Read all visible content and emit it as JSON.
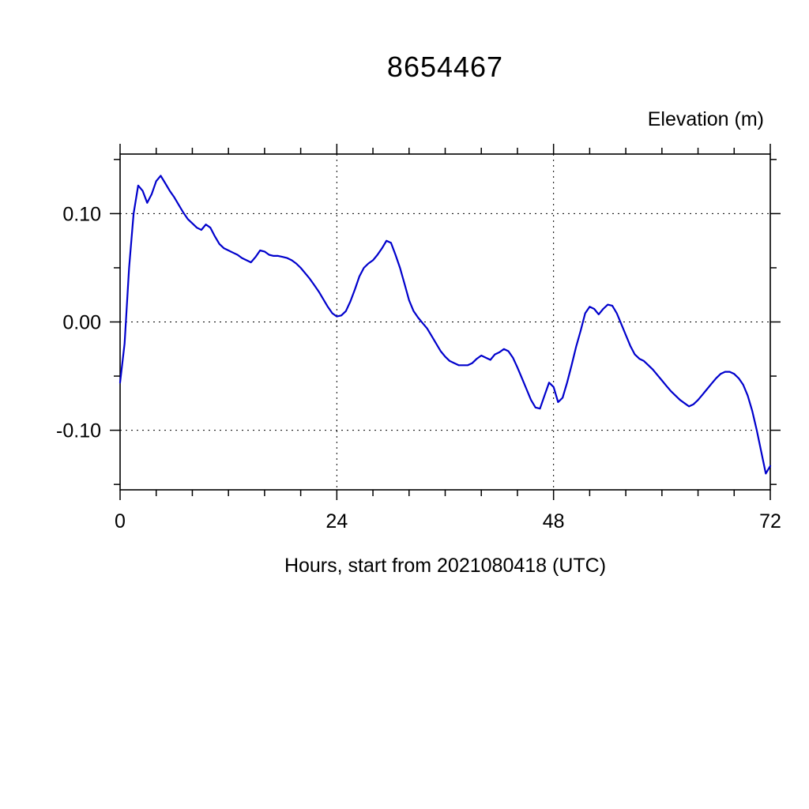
{
  "chart_data": {
    "type": "line",
    "title": "8654467",
    "ylabel": "Elevation (m)",
    "xlabel": "Hours, start from 2021080418 (UTC)",
    "xlim": [
      0,
      72
    ],
    "ylim": [
      -0.155,
      0.155
    ],
    "xticks": [
      {
        "v": 0,
        "label": "0"
      },
      {
        "v": 24,
        "label": "24"
      },
      {
        "v": 48,
        "label": "48"
      },
      {
        "v": 72,
        "label": "72"
      }
    ],
    "xtick_minor_step": 4,
    "yticks": [
      {
        "v": 0.1,
        "label": "0.10"
      },
      {
        "v": 0.0,
        "label": "0.00"
      },
      {
        "v": -0.1,
        "label": "-0.10"
      }
    ],
    "ytick_minor_step": 0.05,
    "grid": {
      "style": "dashed",
      "on_major_ticks": true
    },
    "line_color": "#0000cc",
    "frame_color": "#000000",
    "series": [
      {
        "name": "elevation_m",
        "points": [
          [
            0,
            -0.056
          ],
          [
            0.5,
            -0.02
          ],
          [
            1,
            0.05
          ],
          [
            1.5,
            0.1
          ],
          [
            2,
            0.126
          ],
          [
            2.5,
            0.121
          ],
          [
            3,
            0.11
          ],
          [
            3.5,
            0.118
          ],
          [
            4,
            0.13
          ],
          [
            4.5,
            0.135
          ],
          [
            5,
            0.128
          ],
          [
            5.5,
            0.121
          ],
          [
            6,
            0.115
          ],
          [
            6.5,
            0.108
          ],
          [
            7,
            0.101
          ],
          [
            7.5,
            0.095
          ],
          [
            8,
            0.091
          ],
          [
            8.5,
            0.087
          ],
          [
            9,
            0.085
          ],
          [
            9.5,
            0.09
          ],
          [
            10,
            0.087
          ],
          [
            10.5,
            0.079
          ],
          [
            11,
            0.072
          ],
          [
            11.5,
            0.068
          ],
          [
            12,
            0.066
          ],
          [
            12.5,
            0.064
          ],
          [
            13,
            0.062
          ],
          [
            13.5,
            0.059
          ],
          [
            14,
            0.057
          ],
          [
            14.5,
            0.055
          ],
          [
            15,
            0.06
          ],
          [
            15.5,
            0.066
          ],
          [
            16,
            0.065
          ],
          [
            16.5,
            0.062
          ],
          [
            17,
            0.061
          ],
          [
            17.5,
            0.061
          ],
          [
            18,
            0.06
          ],
          [
            18.5,
            0.059
          ],
          [
            19,
            0.057
          ],
          [
            19.5,
            0.054
          ],
          [
            20,
            0.05
          ],
          [
            20.5,
            0.045
          ],
          [
            21,
            0.04
          ],
          [
            21.5,
            0.034
          ],
          [
            22,
            0.028
          ],
          [
            22.5,
            0.021
          ],
          [
            23,
            0.014
          ],
          [
            23.5,
            0.008
          ],
          [
            24,
            0.005
          ],
          [
            24.5,
            0.006
          ],
          [
            25,
            0.01
          ],
          [
            25.5,
            0.019
          ],
          [
            26,
            0.03
          ],
          [
            26.5,
            0.042
          ],
          [
            27,
            0.05
          ],
          [
            27.5,
            0.054
          ],
          [
            28,
            0.057
          ],
          [
            28.5,
            0.062
          ],
          [
            29,
            0.068
          ],
          [
            29.5,
            0.075
          ],
          [
            30,
            0.073
          ],
          [
            30.5,
            0.062
          ],
          [
            31,
            0.05
          ],
          [
            31.5,
            0.035
          ],
          [
            32,
            0.02
          ],
          [
            32.5,
            0.01
          ],
          [
            33,
            0.004
          ],
          [
            33.5,
            -0.001
          ],
          [
            34,
            -0.006
          ],
          [
            34.5,
            -0.013
          ],
          [
            35,
            -0.02
          ],
          [
            35.5,
            -0.027
          ],
          [
            36,
            -0.032
          ],
          [
            36.5,
            -0.036
          ],
          [
            37,
            -0.038
          ],
          [
            37.5,
            -0.04
          ],
          [
            38,
            -0.04
          ],
          [
            38.5,
            -0.04
          ],
          [
            39,
            -0.038
          ],
          [
            39.5,
            -0.034
          ],
          [
            40,
            -0.031
          ],
          [
            40.5,
            -0.033
          ],
          [
            41,
            -0.035
          ],
          [
            41.5,
            -0.03
          ],
          [
            42,
            -0.028
          ],
          [
            42.5,
            -0.025
          ],
          [
            43,
            -0.027
          ],
          [
            43.5,
            -0.033
          ],
          [
            44,
            -0.042
          ],
          [
            44.5,
            -0.052
          ],
          [
            45,
            -0.062
          ],
          [
            45.5,
            -0.072
          ],
          [
            46,
            -0.079
          ],
          [
            46.5,
            -0.08
          ],
          [
            47,
            -0.068
          ],
          [
            47.5,
            -0.056
          ],
          [
            48,
            -0.06
          ],
          [
            48.5,
            -0.074
          ],
          [
            49,
            -0.07
          ],
          [
            49.5,
            -0.056
          ],
          [
            50,
            -0.04
          ],
          [
            50.5,
            -0.023
          ],
          [
            51,
            -0.008
          ],
          [
            51.5,
            0.008
          ],
          [
            52,
            0.014
          ],
          [
            52.5,
            0.012
          ],
          [
            53,
            0.007
          ],
          [
            53.5,
            0.012
          ],
          [
            54,
            0.016
          ],
          [
            54.5,
            0.015
          ],
          [
            55,
            0.008
          ],
          [
            55.5,
            -0.002
          ],
          [
            56,
            -0.012
          ],
          [
            56.5,
            -0.022
          ],
          [
            57,
            -0.03
          ],
          [
            57.5,
            -0.034
          ],
          [
            58,
            -0.036
          ],
          [
            58.5,
            -0.04
          ],
          [
            59,
            -0.044
          ],
          [
            59.5,
            -0.049
          ],
          [
            60,
            -0.054
          ],
          [
            60.5,
            -0.059
          ],
          [
            61,
            -0.064
          ],
          [
            61.5,
            -0.068
          ],
          [
            62,
            -0.072
          ],
          [
            62.5,
            -0.075
          ],
          [
            63,
            -0.078
          ],
          [
            63.5,
            -0.076
          ],
          [
            64,
            -0.072
          ],
          [
            64.5,
            -0.067
          ],
          [
            65,
            -0.062
          ],
          [
            65.5,
            -0.057
          ],
          [
            66,
            -0.052
          ],
          [
            66.5,
            -0.048
          ],
          [
            67,
            -0.046
          ],
          [
            67.5,
            -0.046
          ],
          [
            68,
            -0.048
          ],
          [
            68.5,
            -0.052
          ],
          [
            69,
            -0.058
          ],
          [
            69.5,
            -0.068
          ],
          [
            70,
            -0.082
          ],
          [
            70.5,
            -0.1
          ],
          [
            71,
            -0.12
          ],
          [
            71.5,
            -0.14
          ],
          [
            72,
            -0.133
          ]
        ]
      }
    ]
  }
}
